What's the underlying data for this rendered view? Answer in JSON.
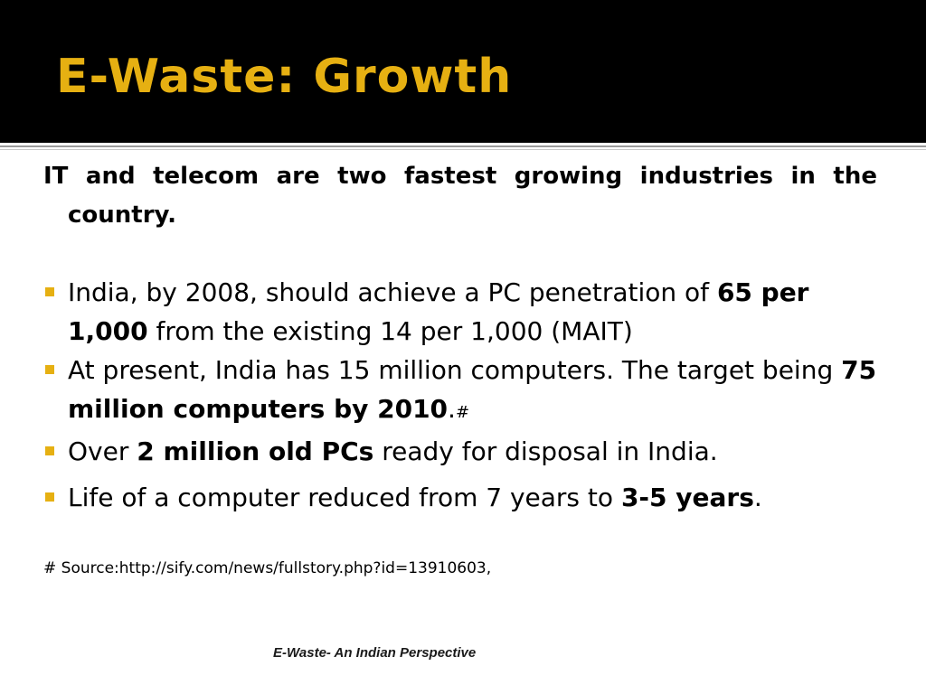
{
  "slide": {
    "title": "E-Waste: Growth",
    "intro": "IT and telecom are two fastest growing industries in the country.",
    "bullets": [
      {
        "pre": "India, by 2008, should achieve a PC penetration of ",
        "bold": "65 per 1,000",
        "post": " from the existing 14 per 1,000 (MAIT)"
      },
      {
        "pre": "At present, India has 15 million computers. The target being ",
        "bold": "75 million computers by 2010",
        "post": ".",
        "mark": "#"
      },
      {
        "pre": "Over ",
        "bold": "2 million old PCs",
        "post": " ready for disposal in India."
      },
      {
        "pre": "Life of a computer reduced from 7 years to ",
        "bold": "3-5 years",
        "post": "."
      }
    ],
    "source": "# Source:http://sify.com/news/fullstory.php?id=13910603,",
    "footer": "E-Waste- An Indian Perspective"
  },
  "colors": {
    "title_bar": "#000000",
    "title_text": "#e6b012",
    "bullet_marker": "#e6b012"
  }
}
